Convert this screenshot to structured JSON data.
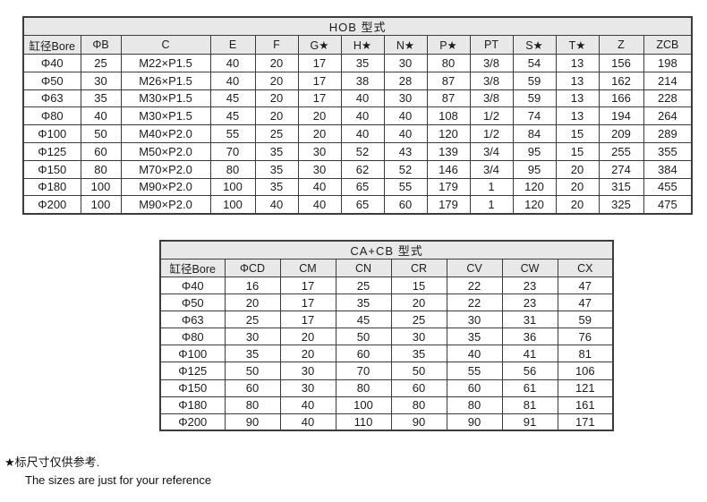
{
  "colors": {
    "header_band_bg": "#e8e8e8",
    "table_border": "#3c3c3c",
    "text": "#1c1c1c",
    "page_bg": "#ffffff"
  },
  "hob_table": {
    "title": "HOB 型式",
    "columns": [
      "缸径Bore",
      "ΦB",
      "C",
      "E",
      "F",
      "G★",
      "H★",
      "N★",
      "P★",
      "PT",
      "S★",
      "T★",
      "Z",
      "ZCB"
    ],
    "rows": [
      [
        "Φ40",
        "25",
        "M22×P1.5",
        "40",
        "20",
        "17",
        "35",
        "30",
        "80",
        "3/8",
        "54",
        "13",
        "156",
        "198"
      ],
      [
        "Φ50",
        "30",
        "M26×P1.5",
        "40",
        "20",
        "17",
        "38",
        "28",
        "87",
        "3/8",
        "59",
        "13",
        "162",
        "214"
      ],
      [
        "Φ63",
        "35",
        "M30×P1.5",
        "45",
        "20",
        "17",
        "40",
        "30",
        "87",
        "3/8",
        "59",
        "13",
        "166",
        "228"
      ],
      [
        "Φ80",
        "40",
        "M30×P1.5",
        "45",
        "20",
        "20",
        "40",
        "40",
        "108",
        "1/2",
        "74",
        "13",
        "194",
        "264"
      ],
      [
        "Φ100",
        "50",
        "M40×P2.0",
        "55",
        "25",
        "20",
        "40",
        "40",
        "120",
        "1/2",
        "84",
        "15",
        "209",
        "289"
      ],
      [
        "Φ125",
        "60",
        "M50×P2.0",
        "70",
        "35",
        "30",
        "52",
        "43",
        "139",
        "3/4",
        "95",
        "15",
        "255",
        "355"
      ],
      [
        "Φ150",
        "80",
        "M70×P2.0",
        "80",
        "35",
        "30",
        "62",
        "52",
        "146",
        "3/4",
        "95",
        "20",
        "274",
        "384"
      ],
      [
        "Φ180",
        "100",
        "M90×P2.0",
        "100",
        "35",
        "40",
        "65",
        "55",
        "179",
        "1",
        "120",
        "20",
        "315",
        "455"
      ],
      [
        "Φ200",
        "100",
        "M90×P2.0",
        "100",
        "40",
        "40",
        "65",
        "60",
        "179",
        "1",
        "120",
        "20",
        "325",
        "475"
      ]
    ]
  },
  "cacb_table": {
    "title": "CA+CB 型式",
    "columns": [
      "缸径Bore",
      "ΦCD",
      "CM",
      "CN",
      "CR",
      "CV",
      "CW",
      "CX"
    ],
    "rows": [
      [
        "Φ40",
        "16",
        "17",
        "25",
        "15",
        "22",
        "23",
        "47"
      ],
      [
        "Φ50",
        "20",
        "17",
        "35",
        "20",
        "22",
        "23",
        "47"
      ],
      [
        "Φ63",
        "25",
        "17",
        "45",
        "25",
        "30",
        "31",
        "59"
      ],
      [
        "Φ80",
        "30",
        "20",
        "50",
        "30",
        "35",
        "36",
        "76"
      ],
      [
        "Φ100",
        "35",
        "20",
        "60",
        "35",
        "40",
        "41",
        "81"
      ],
      [
        "Φ125",
        "50",
        "30",
        "70",
        "50",
        "55",
        "56",
        "106"
      ],
      [
        "Φ150",
        "60",
        "30",
        "80",
        "60",
        "60",
        "61",
        "121"
      ],
      [
        "Φ180",
        "80",
        "40",
        "100",
        "80",
        "80",
        "81",
        "161"
      ],
      [
        "Φ200",
        "90",
        "40",
        "110",
        "90",
        "90",
        "91",
        "171"
      ]
    ]
  },
  "footer": {
    "note_zh": "★标尺寸仅供参考.",
    "note_en": "The sizes are just for your reference"
  },
  "column_widths": {
    "hob_table": [
      64,
      45,
      100,
      50,
      48,
      48,
      48,
      48,
      48,
      48,
      48,
      48,
      50,
      54
    ],
    "cacb_table": [
      72,
      62,
      62,
      62,
      62,
      62,
      62,
      62
    ]
  }
}
